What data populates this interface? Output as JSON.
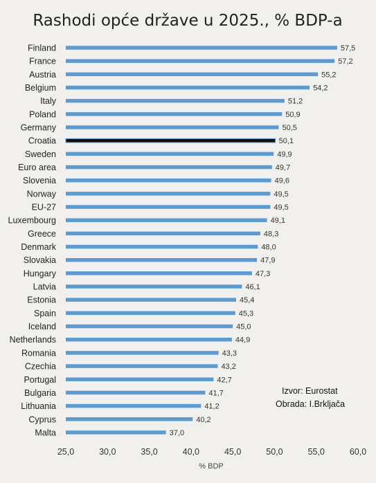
{
  "chart_data": {
    "type": "bar",
    "orientation": "horizontal",
    "title": "Rashodi opće države u 2025., % BDP-a",
    "xlabel": "% BDP",
    "xlim": [
      25.0,
      60.0
    ],
    "xticks": [
      "25,0",
      "30,0",
      "35,0",
      "40,0",
      "45,0",
      "50,0",
      "55,0",
      "60,0"
    ],
    "categories": [
      "Finland",
      "France",
      "Austria",
      "Belgium",
      "Italy",
      "Poland",
      "Germany",
      "Croatia",
      "Sweden",
      "Euro area",
      "Slovenia",
      "Norway",
      "EU-27",
      "Luxembourg",
      "Greece",
      "Denmark",
      "Slovakia",
      "Hungary",
      "Latvia",
      "Estonia",
      "Spain",
      "Iceland",
      "Netherlands",
      "Romania",
      "Czechia",
      "Portugal",
      "Bulgaria",
      "Lithuania",
      "Cyprus",
      "Malta"
    ],
    "values": [
      57.5,
      57.2,
      55.2,
      54.2,
      51.2,
      50.9,
      50.5,
      50.1,
      49.9,
      49.7,
      49.6,
      49.5,
      49.5,
      49.1,
      48.3,
      48.0,
      47.9,
      47.3,
      46.1,
      45.4,
      45.3,
      45.0,
      44.9,
      43.3,
      43.2,
      42.7,
      41.7,
      41.2,
      40.2,
      37.0
    ],
    "labels": [
      "57,5",
      "57,2",
      "55,2",
      "54,2",
      "51,2",
      "50,9",
      "50,5",
      "50,1",
      "49,9",
      "49,7",
      "49,6",
      "49,5",
      "49,5",
      "49,1",
      "48,3",
      "48,0",
      "47,9",
      "47,3",
      "46,1",
      "45,4",
      "45,3",
      "45,0",
      "44,9",
      "43,3",
      "43,2",
      "42,7",
      "41,7",
      "41,2",
      "40,2",
      "37,0"
    ],
    "highlight": "Croatia",
    "colors": {
      "bar": "#5b9bd5",
      "highlight": "#111111",
      "highlight_outline": "#5b9bd5"
    },
    "grid": false,
    "legend": "none",
    "source_note": [
      "Izvor: Eurostat",
      "Obrada: I.Brkljača"
    ]
  }
}
